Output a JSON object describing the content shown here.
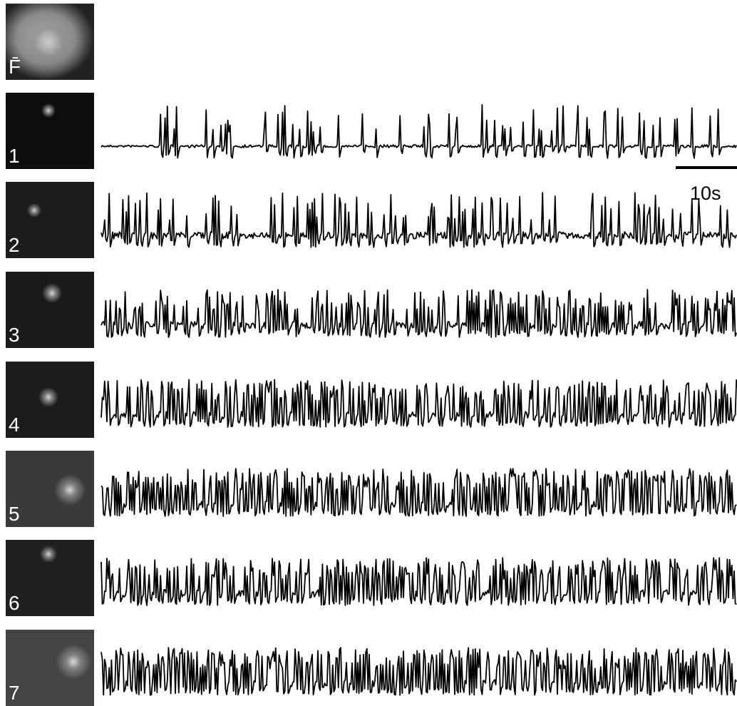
{
  "panels": [
    {
      "label": "F̄"
    },
    {
      "label": "1"
    },
    {
      "label": "2"
    },
    {
      "label": "3"
    },
    {
      "label": "4"
    },
    {
      "label": "5"
    },
    {
      "label": "6"
    },
    {
      "label": "7"
    }
  ],
  "scale_bar": {
    "label": "10s"
  }
}
